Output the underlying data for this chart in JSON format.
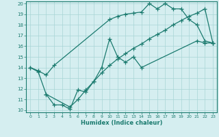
{
  "line1_x": [
    0,
    1,
    2,
    3,
    10,
    11,
    12,
    13,
    14,
    15,
    16,
    17,
    18,
    19,
    20,
    21,
    22,
    23
  ],
  "line1_y": [
    14.0,
    13.7,
    13.3,
    14.2,
    18.5,
    18.8,
    19.0,
    19.1,
    19.2,
    20.0,
    19.5,
    20.0,
    19.5,
    19.5,
    18.5,
    18.0,
    16.5,
    16.3
  ],
  "line2_x": [
    0,
    1,
    2,
    3,
    4,
    5,
    6,
    7,
    8,
    9,
    10,
    11,
    12,
    13,
    14,
    21,
    22,
    23
  ],
  "line2_y": [
    14.0,
    13.6,
    11.5,
    10.5,
    10.5,
    10.1,
    11.9,
    11.7,
    12.7,
    14.0,
    16.7,
    15.0,
    14.5,
    15.0,
    14.0,
    16.5,
    16.3,
    16.3
  ],
  "line3_x": [
    2,
    5,
    6,
    7,
    8,
    9,
    10,
    11,
    12,
    13,
    14,
    15,
    16,
    17,
    18,
    19,
    20,
    21,
    22,
    23
  ],
  "line3_y": [
    11.5,
    10.3,
    11.0,
    11.9,
    12.7,
    13.5,
    14.2,
    14.8,
    15.3,
    15.8,
    16.2,
    16.7,
    17.1,
    17.5,
    18.0,
    18.4,
    18.8,
    19.1,
    19.5,
    16.3
  ],
  "color": "#1a7a6e",
  "bg_color": "#d5eef0",
  "grid_color": "#a8d5d5",
  "xlabel": "Humidex (Indice chaleur)",
  "xlim": [
    -0.5,
    23.5
  ],
  "ylim": [
    9.8,
    20.2
  ],
  "xticks": [
    0,
    1,
    2,
    3,
    4,
    5,
    6,
    7,
    8,
    9,
    10,
    11,
    12,
    13,
    14,
    15,
    16,
    17,
    18,
    19,
    20,
    21,
    22,
    23
  ],
  "yticks": [
    10,
    11,
    12,
    13,
    14,
    15,
    16,
    17,
    18,
    19,
    20
  ]
}
